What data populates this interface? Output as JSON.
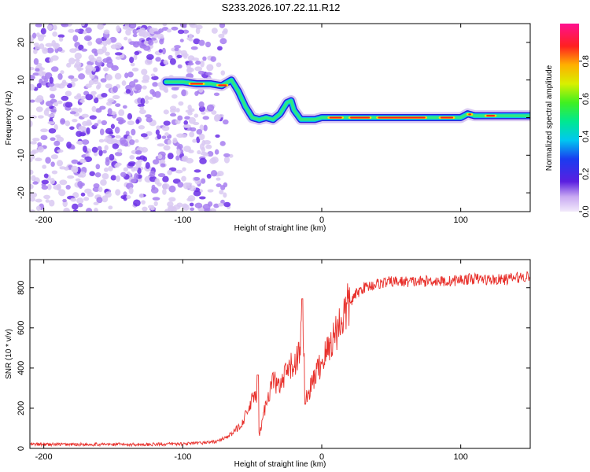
{
  "title": "S233.2026.107.22.11.R12",
  "chart_data": [
    {
      "type": "heatmap",
      "name": "spectrogram",
      "title": "S233.2026.107.22.11.R12",
      "xlabel": "Height of straight line (km)",
      "ylabel": "Frequency (Hz)",
      "xlim": [
        -210,
        150
      ],
      "ylim": [
        -25,
        25
      ],
      "xticks": [
        -200,
        -100,
        0,
        100
      ],
      "yticks": [
        -20,
        -10,
        0,
        10,
        20
      ],
      "colorbar": {
        "label": "Normalized spectral amplitude",
        "range": [
          0,
          1
        ],
        "ticks": [
          0.0,
          0.2,
          0.4,
          0.6,
          0.8
        ],
        "colormap": "rainbow (purple-blue-cyan-green-yellow-red-magenta)"
      },
      "noise_region_x": [
        -210,
        -65
      ],
      "signal_track": {
        "x": [
          -112,
          -100,
          -90,
          -80,
          -72,
          -65,
          -60,
          -55,
          -50,
          -45,
          -40,
          -35,
          -30,
          -25,
          -22,
          -20,
          -15,
          -10,
          -5,
          0,
          10,
          20,
          40,
          60,
          80,
          100,
          105,
          110,
          120,
          130,
          150
        ],
        "freq_hz": [
          9.5,
          9.5,
          9.0,
          9.0,
          8.5,
          10.0,
          7.0,
          3.0,
          0.0,
          -0.5,
          0.0,
          -0.5,
          1.0,
          4.0,
          4.5,
          2.0,
          -0.5,
          -0.5,
          -0.5,
          0.0,
          0.0,
          0.0,
          0.0,
          0.0,
          0.0,
          0.0,
          1.0,
          0.5,
          0.5,
          0.5,
          0.5
        ]
      },
      "colors": {
        "noise_light": "#d9c9f2",
        "noise_mid": "#a77ef0",
        "noise_dark": "#6b2ee6"
      }
    },
    {
      "type": "line",
      "name": "snr",
      "xlabel": "Height of straight line (km)",
      "ylabel": "SNR (10 * v/v)",
      "xlim": [
        -210,
        150
      ],
      "ylim": [
        0,
        940
      ],
      "xticks": [
        -200,
        -100,
        0,
        100
      ],
      "yticks": [
        0,
        200,
        400,
        600,
        800
      ],
      "color": "#e8312c",
      "series": [
        {
          "name": "SNR",
          "x": [
            -210,
            -180,
            -150,
            -120,
            -90,
            -75,
            -65,
            -58,
            -52,
            -48,
            -45,
            -40,
            -35,
            -30,
            -25,
            -20,
            -16,
            -14,
            -12,
            -10,
            -5,
            0,
            5,
            10,
            15,
            20,
            25,
            30,
            35,
            40,
            50,
            60,
            70,
            80,
            90,
            100,
            110,
            120,
            130,
            140,
            150
          ],
          "y": [
            20,
            20,
            20,
            20,
            25,
            35,
            70,
            120,
            200,
            280,
            60,
            230,
            340,
            300,
            380,
            420,
            470,
            660,
            330,
            260,
            360,
            430,
            500,
            580,
            650,
            720,
            770,
            800,
            810,
            820,
            830,
            830,
            830,
            835,
            830,
            840,
            845,
            840,
            840,
            850,
            860
          ],
          "spikes": [
            {
              "x": -46,
              "y": 365
            },
            {
              "x": -14,
              "y": 745
            },
            {
              "x": -12,
              "y": 220
            }
          ]
        }
      ]
    }
  ]
}
